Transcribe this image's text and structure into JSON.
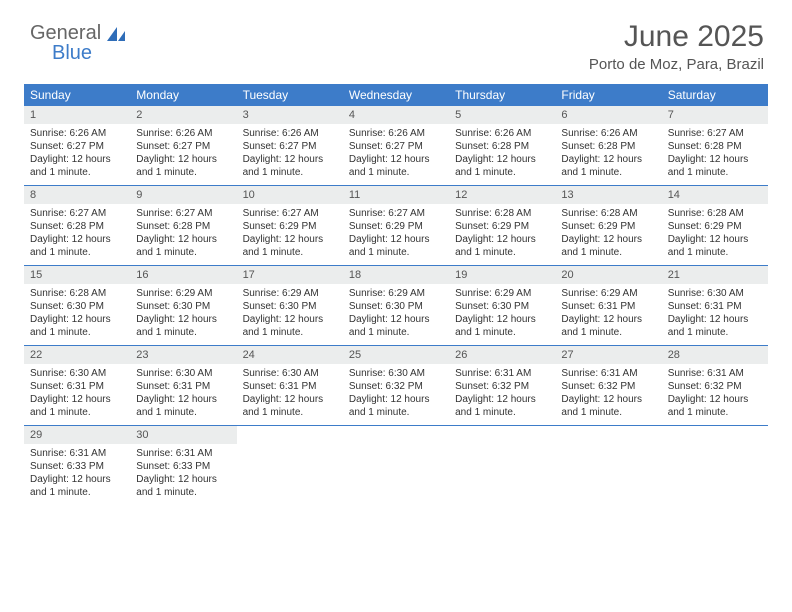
{
  "branding": {
    "word1": "General",
    "word2": "Blue",
    "logo_color": "#2f6db8"
  },
  "header": {
    "title": "June 2025",
    "location": "Porto de Moz, Para, Brazil"
  },
  "colors": {
    "header_bg": "#3d7cc9",
    "header_text": "#ffffff",
    "daynum_bg": "#ebeded",
    "week_divider": "#3d7cc9",
    "text": "#333333"
  },
  "calendar": {
    "type": "table",
    "day_headers": [
      "Sunday",
      "Monday",
      "Tuesday",
      "Wednesday",
      "Thursday",
      "Friday",
      "Saturday"
    ],
    "weeks": [
      [
        {
          "n": "1",
          "sr": "Sunrise: 6:26 AM",
          "ss": "Sunset: 6:27 PM",
          "dl": "Daylight: 12 hours and 1 minute."
        },
        {
          "n": "2",
          "sr": "Sunrise: 6:26 AM",
          "ss": "Sunset: 6:27 PM",
          "dl": "Daylight: 12 hours and 1 minute."
        },
        {
          "n": "3",
          "sr": "Sunrise: 6:26 AM",
          "ss": "Sunset: 6:27 PM",
          "dl": "Daylight: 12 hours and 1 minute."
        },
        {
          "n": "4",
          "sr": "Sunrise: 6:26 AM",
          "ss": "Sunset: 6:27 PM",
          "dl": "Daylight: 12 hours and 1 minute."
        },
        {
          "n": "5",
          "sr": "Sunrise: 6:26 AM",
          "ss": "Sunset: 6:28 PM",
          "dl": "Daylight: 12 hours and 1 minute."
        },
        {
          "n": "6",
          "sr": "Sunrise: 6:26 AM",
          "ss": "Sunset: 6:28 PM",
          "dl": "Daylight: 12 hours and 1 minute."
        },
        {
          "n": "7",
          "sr": "Sunrise: 6:27 AM",
          "ss": "Sunset: 6:28 PM",
          "dl": "Daylight: 12 hours and 1 minute."
        }
      ],
      [
        {
          "n": "8",
          "sr": "Sunrise: 6:27 AM",
          "ss": "Sunset: 6:28 PM",
          "dl": "Daylight: 12 hours and 1 minute."
        },
        {
          "n": "9",
          "sr": "Sunrise: 6:27 AM",
          "ss": "Sunset: 6:28 PM",
          "dl": "Daylight: 12 hours and 1 minute."
        },
        {
          "n": "10",
          "sr": "Sunrise: 6:27 AM",
          "ss": "Sunset: 6:29 PM",
          "dl": "Daylight: 12 hours and 1 minute."
        },
        {
          "n": "11",
          "sr": "Sunrise: 6:27 AM",
          "ss": "Sunset: 6:29 PM",
          "dl": "Daylight: 12 hours and 1 minute."
        },
        {
          "n": "12",
          "sr": "Sunrise: 6:28 AM",
          "ss": "Sunset: 6:29 PM",
          "dl": "Daylight: 12 hours and 1 minute."
        },
        {
          "n": "13",
          "sr": "Sunrise: 6:28 AM",
          "ss": "Sunset: 6:29 PM",
          "dl": "Daylight: 12 hours and 1 minute."
        },
        {
          "n": "14",
          "sr": "Sunrise: 6:28 AM",
          "ss": "Sunset: 6:29 PM",
          "dl": "Daylight: 12 hours and 1 minute."
        }
      ],
      [
        {
          "n": "15",
          "sr": "Sunrise: 6:28 AM",
          "ss": "Sunset: 6:30 PM",
          "dl": "Daylight: 12 hours and 1 minute."
        },
        {
          "n": "16",
          "sr": "Sunrise: 6:29 AM",
          "ss": "Sunset: 6:30 PM",
          "dl": "Daylight: 12 hours and 1 minute."
        },
        {
          "n": "17",
          "sr": "Sunrise: 6:29 AM",
          "ss": "Sunset: 6:30 PM",
          "dl": "Daylight: 12 hours and 1 minute."
        },
        {
          "n": "18",
          "sr": "Sunrise: 6:29 AM",
          "ss": "Sunset: 6:30 PM",
          "dl": "Daylight: 12 hours and 1 minute."
        },
        {
          "n": "19",
          "sr": "Sunrise: 6:29 AM",
          "ss": "Sunset: 6:30 PM",
          "dl": "Daylight: 12 hours and 1 minute."
        },
        {
          "n": "20",
          "sr": "Sunrise: 6:29 AM",
          "ss": "Sunset: 6:31 PM",
          "dl": "Daylight: 12 hours and 1 minute."
        },
        {
          "n": "21",
          "sr": "Sunrise: 6:30 AM",
          "ss": "Sunset: 6:31 PM",
          "dl": "Daylight: 12 hours and 1 minute."
        }
      ],
      [
        {
          "n": "22",
          "sr": "Sunrise: 6:30 AM",
          "ss": "Sunset: 6:31 PM",
          "dl": "Daylight: 12 hours and 1 minute."
        },
        {
          "n": "23",
          "sr": "Sunrise: 6:30 AM",
          "ss": "Sunset: 6:31 PM",
          "dl": "Daylight: 12 hours and 1 minute."
        },
        {
          "n": "24",
          "sr": "Sunrise: 6:30 AM",
          "ss": "Sunset: 6:31 PM",
          "dl": "Daylight: 12 hours and 1 minute."
        },
        {
          "n": "25",
          "sr": "Sunrise: 6:30 AM",
          "ss": "Sunset: 6:32 PM",
          "dl": "Daylight: 12 hours and 1 minute."
        },
        {
          "n": "26",
          "sr": "Sunrise: 6:31 AM",
          "ss": "Sunset: 6:32 PM",
          "dl": "Daylight: 12 hours and 1 minute."
        },
        {
          "n": "27",
          "sr": "Sunrise: 6:31 AM",
          "ss": "Sunset: 6:32 PM",
          "dl": "Daylight: 12 hours and 1 minute."
        },
        {
          "n": "28",
          "sr": "Sunrise: 6:31 AM",
          "ss": "Sunset: 6:32 PM",
          "dl": "Daylight: 12 hours and 1 minute."
        }
      ],
      [
        {
          "n": "29",
          "sr": "Sunrise: 6:31 AM",
          "ss": "Sunset: 6:33 PM",
          "dl": "Daylight: 12 hours and 1 minute."
        },
        {
          "n": "30",
          "sr": "Sunrise: 6:31 AM",
          "ss": "Sunset: 6:33 PM",
          "dl": "Daylight: 12 hours and 1 minute."
        },
        {
          "empty": true
        },
        {
          "empty": true
        },
        {
          "empty": true
        },
        {
          "empty": true
        },
        {
          "empty": true
        }
      ]
    ]
  }
}
